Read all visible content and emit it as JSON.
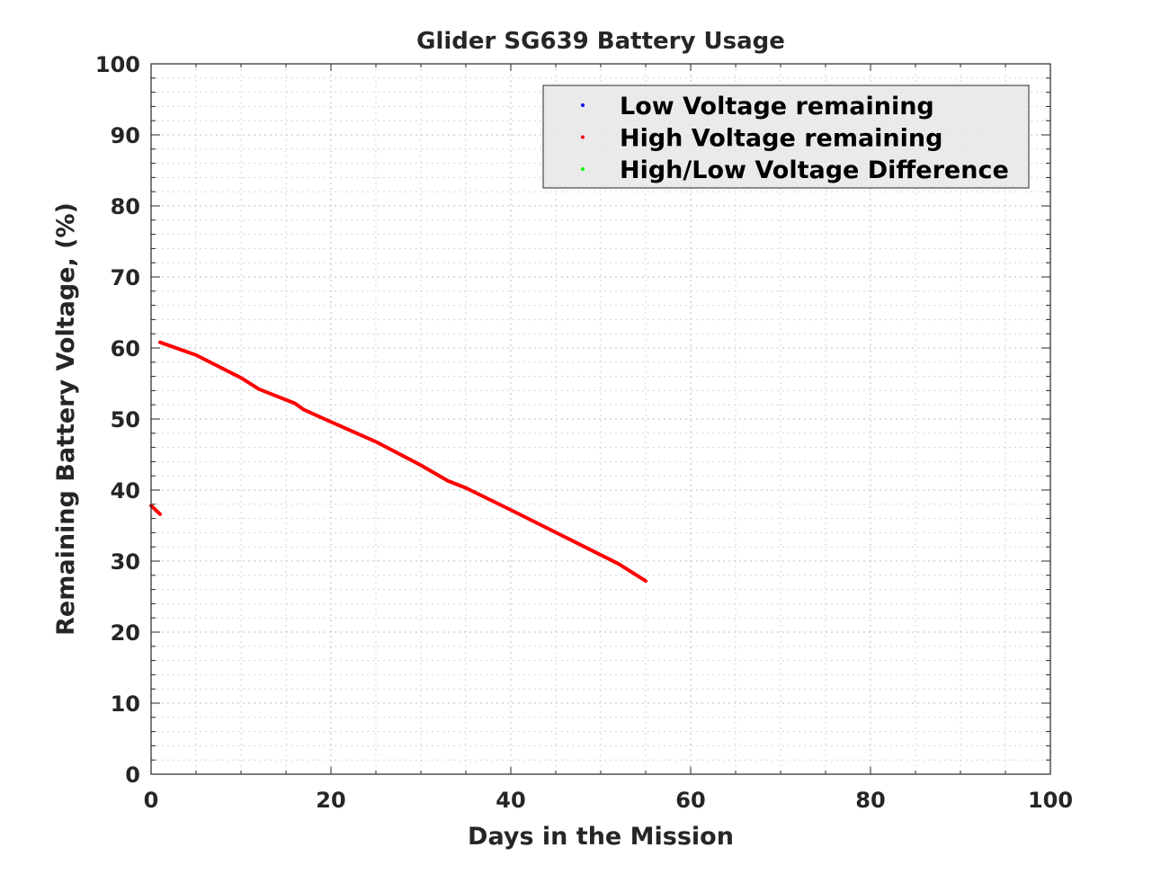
{
  "chart_data": {
    "type": "line",
    "title": "Glider SG639 Battery Usage",
    "xlabel": "Days in the Mission",
    "ylabel": "Remaining Battery Voltage, (%)",
    "xlim": [
      0,
      100
    ],
    "ylim": [
      0,
      100
    ],
    "xticks": [
      0,
      20,
      40,
      60,
      80,
      100
    ],
    "yticks": [
      0,
      10,
      20,
      30,
      40,
      50,
      60,
      70,
      80,
      90,
      100
    ],
    "x_minor_step": 5,
    "y_minor_step": 2,
    "grid": true,
    "legend_position": "top-right",
    "series": [
      {
        "name": "Low Voltage remaining",
        "color": "#0000ff",
        "x": [],
        "y": []
      },
      {
        "name": "High Voltage remaining",
        "color": "#ff0000",
        "segments": [
          {
            "x": [
              0,
              1
            ],
            "y": [
              37.8,
              36.6
            ]
          },
          {
            "x": [
              1,
              5,
              10,
              12,
              16,
              17,
              20,
              25,
              30,
              33,
              35,
              40,
              46,
              52,
              55
            ],
            "y": [
              60.8,
              59.0,
              55.8,
              54.2,
              52.2,
              51.3,
              49.6,
              46.8,
              43.5,
              41.3,
              40.3,
              37.2,
              33.4,
              29.6,
              27.2
            ]
          }
        ]
      },
      {
        "name": "High/Low Voltage Difference",
        "color": "#00ff00",
        "x": [],
        "y": []
      }
    ]
  }
}
